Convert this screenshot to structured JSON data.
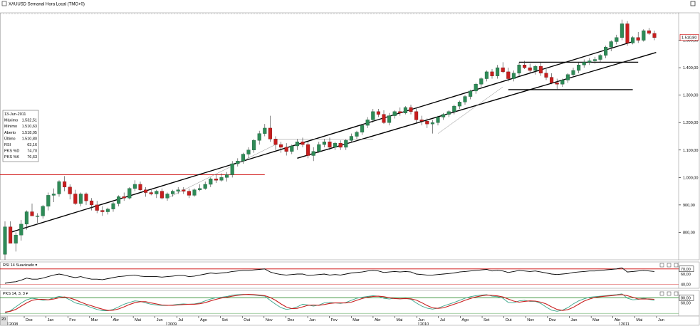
{
  "title": "XAUUSD Semanal Hora Local (TMG+0)",
  "chart_data": {
    "type": "candlestick",
    "instrument": "XAUUSD",
    "timeframe": "Semanal",
    "y_axis": {
      "ticks": [
        800,
        900,
        1000,
        1100,
        1200,
        1300,
        1400,
        1500
      ],
      "tick_labels": [
        "800,00",
        "900,00",
        "1.000,00",
        "1.100,00",
        "1.200,00",
        "1.300,00",
        "1.400,00",
        "1.500,00"
      ],
      "range": [
        700,
        1600
      ]
    },
    "last_price_label": "1.510,80",
    "last_price": 1510.8,
    "x_axis": {
      "month_labels": [
        "Dez",
        "Jan",
        "Fev",
        "Mar",
        "Abr",
        "Mai",
        "Jun",
        "Jul",
        "Ago",
        "Set",
        "Out",
        "Nov",
        "Dez",
        "Jan",
        "Fev",
        "Mar",
        "Abr",
        "Mai",
        "Jun",
        "Jul",
        "Ago",
        "Set",
        "Out",
        "Nov",
        "Dez",
        "Jan",
        "Mar",
        "Abr",
        "Mai",
        "Jun"
      ],
      "year_labels": [
        "2008",
        "2009",
        "2010",
        "2011"
      ],
      "left_cut_label": "20"
    },
    "ohlc": [
      [
        720,
        840,
        700,
        820
      ],
      [
        820,
        840,
        760,
        760
      ],
      [
        760,
        800,
        730,
        790
      ],
      [
        790,
        845,
        770,
        830
      ],
      [
        830,
        880,
        810,
        875
      ],
      [
        875,
        905,
        860,
        860
      ],
      [
        860,
        870,
        835,
        860
      ],
      [
        860,
        900,
        850,
        895
      ],
      [
        895,
        945,
        880,
        935
      ],
      [
        935,
        960,
        910,
        940
      ],
      [
        940,
        990,
        930,
        985
      ],
      [
        985,
        1005,
        950,
        965
      ],
      [
        965,
        975,
        920,
        940
      ],
      [
        940,
        955,
        900,
        905
      ],
      [
        905,
        945,
        895,
        940
      ],
      [
        940,
        945,
        900,
        915
      ],
      [
        915,
        925,
        880,
        900
      ],
      [
        900,
        915,
        870,
        880
      ],
      [
        880,
        895,
        860,
        875
      ],
      [
        875,
        890,
        865,
        885
      ],
      [
        885,
        910,
        875,
        905
      ],
      [
        905,
        935,
        895,
        930
      ],
      [
        930,
        945,
        915,
        925
      ],
      [
        925,
        965,
        920,
        960
      ],
      [
        960,
        990,
        950,
        975
      ],
      [
        975,
        985,
        950,
        955
      ],
      [
        955,
        965,
        930,
        945
      ],
      [
        945,
        955,
        935,
        940
      ],
      [
        940,
        955,
        925,
        950
      ],
      [
        950,
        960,
        920,
        925
      ],
      [
        925,
        945,
        915,
        940
      ],
      [
        940,
        955,
        930,
        950
      ],
      [
        950,
        965,
        940,
        955
      ],
      [
        955,
        965,
        940,
        950
      ],
      [
        950,
        960,
        925,
        935
      ],
      [
        935,
        960,
        930,
        955
      ],
      [
        955,
        975,
        950,
        960
      ],
      [
        960,
        985,
        955,
        975
      ],
      [
        975,
        1000,
        965,
        995
      ],
      [
        995,
        1010,
        980,
        990
      ],
      [
        990,
        1015,
        985,
        1000
      ],
      [
        1000,
        1020,
        985,
        1010
      ],
      [
        1010,
        1060,
        1000,
        1050
      ],
      [
        1050,
        1070,
        1040,
        1060
      ],
      [
        1060,
        1090,
        1050,
        1085
      ],
      [
        1085,
        1110,
        1070,
        1100
      ],
      [
        1100,
        1140,
        1090,
        1135
      ],
      [
        1135,
        1170,
        1120,
        1160
      ],
      [
        1160,
        1195,
        1150,
        1180
      ],
      [
        1180,
        1225,
        1130,
        1140
      ],
      [
        1140,
        1150,
        1100,
        1120
      ],
      [
        1120,
        1130,
        1090,
        1110
      ],
      [
        1110,
        1125,
        1080,
        1095
      ],
      [
        1095,
        1120,
        1085,
        1115
      ],
      [
        1115,
        1140,
        1100,
        1130
      ],
      [
        1130,
        1145,
        1110,
        1120
      ],
      [
        1120,
        1130,
        1070,
        1080
      ],
      [
        1080,
        1110,
        1060,
        1095
      ],
      [
        1095,
        1130,
        1090,
        1120
      ],
      [
        1120,
        1140,
        1110,
        1130
      ],
      [
        1130,
        1145,
        1100,
        1110
      ],
      [
        1110,
        1130,
        1100,
        1125
      ],
      [
        1125,
        1135,
        1100,
        1110
      ],
      [
        1110,
        1140,
        1100,
        1135
      ],
      [
        1135,
        1160,
        1130,
        1150
      ],
      [
        1150,
        1170,
        1140,
        1165
      ],
      [
        1165,
        1195,
        1155,
        1190
      ],
      [
        1190,
        1220,
        1180,
        1210
      ],
      [
        1210,
        1250,
        1200,
        1240
      ],
      [
        1240,
        1250,
        1220,
        1230
      ],
      [
        1230,
        1245,
        1195,
        1200
      ],
      [
        1200,
        1235,
        1190,
        1225
      ],
      [
        1225,
        1245,
        1215,
        1240
      ],
      [
        1240,
        1255,
        1225,
        1235
      ],
      [
        1235,
        1260,
        1230,
        1255
      ],
      [
        1255,
        1265,
        1230,
        1240
      ],
      [
        1240,
        1255,
        1200,
        1210
      ],
      [
        1210,
        1225,
        1190,
        1205
      ],
      [
        1205,
        1215,
        1180,
        1195
      ],
      [
        1195,
        1210,
        1160,
        1200
      ],
      [
        1200,
        1225,
        1190,
        1220
      ],
      [
        1220,
        1235,
        1210,
        1230
      ],
      [
        1230,
        1245,
        1220,
        1240
      ],
      [
        1240,
        1265,
        1230,
        1260
      ],
      [
        1260,
        1280,
        1250,
        1275
      ],
      [
        1275,
        1300,
        1265,
        1295
      ],
      [
        1295,
        1320,
        1285,
        1315
      ],
      [
        1315,
        1345,
        1305,
        1340
      ],
      [
        1340,
        1365,
        1330,
        1360
      ],
      [
        1360,
        1390,
        1350,
        1385
      ],
      [
        1385,
        1395,
        1360,
        1370
      ],
      [
        1370,
        1410,
        1360,
        1400
      ],
      [
        1400,
        1420,
        1380,
        1385
      ],
      [
        1385,
        1400,
        1350,
        1360
      ],
      [
        1360,
        1390,
        1350,
        1380
      ],
      [
        1380,
        1420,
        1370,
        1410
      ],
      [
        1410,
        1425,
        1395,
        1400
      ],
      [
        1400,
        1415,
        1380,
        1390
      ],
      [
        1390,
        1410,
        1375,
        1405
      ],
      [
        1405,
        1420,
        1370,
        1380
      ],
      [
        1380,
        1395,
        1355,
        1365
      ],
      [
        1365,
        1380,
        1340,
        1345
      ],
      [
        1345,
        1360,
        1320,
        1340
      ],
      [
        1340,
        1360,
        1330,
        1355
      ],
      [
        1355,
        1380,
        1345,
        1375
      ],
      [
        1375,
        1400,
        1365,
        1390
      ],
      [
        1390,
        1420,
        1380,
        1410
      ],
      [
        1410,
        1430,
        1400,
        1420
      ],
      [
        1420,
        1435,
        1410,
        1425
      ],
      [
        1425,
        1440,
        1415,
        1430
      ],
      [
        1430,
        1450,
        1420,
        1445
      ],
      [
        1445,
        1480,
        1435,
        1475
      ],
      [
        1475,
        1500,
        1460,
        1495
      ],
      [
        1495,
        1520,
        1485,
        1510
      ],
      [
        1510,
        1575,
        1500,
        1560
      ],
      [
        1560,
        1570,
        1480,
        1490
      ],
      [
        1490,
        1515,
        1485,
        1510
      ],
      [
        1510,
        1530,
        1490,
        1500
      ],
      [
        1500,
        1540,
        1495,
        1535
      ],
      [
        1535,
        1545,
        1520,
        1525
      ],
      [
        1525,
        1535,
        1500,
        1510
      ]
    ],
    "trendline_1": [
      [
        1,
        800
      ],
      [
        116,
        1495
      ]
    ],
    "trendline_2": [
      [
        54,
        1070
      ],
      [
        119,
        1440
      ]
    ],
    "horizontal_resistance": 1010,
    "box_top": 1420,
    "box_bottom": 1320,
    "indicator_rsi": {
      "label": "RSI 14 Suavizado",
      "value_label": "70,00",
      "ticks": [
        "70,00",
        "60,00",
        "40,00"
      ],
      "values": [
        42,
        44,
        45,
        48,
        52,
        50,
        50,
        52,
        55,
        58,
        60,
        58,
        55,
        53,
        55,
        52,
        50,
        50,
        49,
        51,
        53,
        55,
        56,
        57,
        58,
        56,
        55,
        55,
        55,
        54,
        55,
        56,
        57,
        57,
        55,
        56,
        58,
        60,
        62,
        61,
        62,
        63,
        65,
        66,
        67,
        67,
        68,
        69,
        70,
        64,
        61,
        59,
        58,
        59,
        60,
        60,
        57,
        58,
        59,
        60,
        58,
        59,
        58,
        60,
        62,
        63,
        64,
        66,
        67,
        66,
        63,
        64,
        65,
        64,
        65,
        64,
        60,
        59,
        58,
        58,
        59,
        60,
        61,
        62,
        64,
        65,
        66,
        67,
        68,
        69,
        66,
        67,
        66,
        63,
        65,
        67,
        66,
        65,
        66,
        64,
        62,
        60,
        59,
        60,
        61,
        63,
        64,
        65,
        66,
        66,
        67,
        68,
        69,
        70,
        72,
        64,
        65,
        66,
        67,
        66,
        65
      ]
    },
    "indicator_pks": {
      "label": "PKS 14, 3, 3",
      "value_label": "80,00",
      "ticks": [
        "80,00",
        "60,00"
      ],
      "k_values": [
        20,
        30,
        45,
        60,
        72,
        78,
        75,
        70,
        72,
        80,
        85,
        82,
        72,
        60,
        55,
        50,
        42,
        35,
        30,
        30,
        35,
        45,
        55,
        62,
        68,
        66,
        60,
        55,
        52,
        50,
        50,
        52,
        55,
        56,
        55,
        56,
        60,
        68,
        75,
        80,
        82,
        85,
        90,
        92,
        93,
        92,
        90,
        88,
        86,
        70,
        55,
        42,
        35,
        38,
        45,
        55,
        52,
        48,
        52,
        60,
        62,
        60,
        58,
        62,
        70,
        78,
        82,
        85,
        88,
        86,
        78,
        75,
        78,
        76,
        78,
        74,
        60,
        48,
        40,
        36,
        40,
        48,
        55,
        62,
        70,
        78,
        84,
        88,
        90,
        92,
        86,
        84,
        78,
        62,
        60,
        68,
        70,
        66,
        66,
        58,
        44,
        32,
        28,
        32,
        42,
        56,
        68,
        76,
        82,
        84,
        86,
        88,
        90,
        92,
        95,
        78,
        72,
        74,
        78,
        74,
        70
      ],
      "d_values": [
        25,
        28,
        35,
        48,
        60,
        70,
        74,
        74,
        72,
        75,
        80,
        83,
        79,
        72,
        63,
        55,
        49,
        42,
        36,
        31,
        32,
        37,
        45,
        54,
        61,
        65,
        65,
        60,
        56,
        52,
        51,
        51,
        52,
        54,
        55,
        55,
        57,
        61,
        68,
        74,
        79,
        82,
        86,
        89,
        92,
        93,
        92,
        90,
        88,
        81,
        70,
        56,
        44,
        38,
        39,
        45,
        51,
        52,
        51,
        54,
        58,
        60,
        60,
        60,
        63,
        70,
        77,
        82,
        85,
        86,
        84,
        80,
        77,
        76,
        77,
        76,
        71,
        61,
        50,
        41,
        39,
        41,
        48,
        55,
        62,
        70,
        77,
        83,
        87,
        90,
        89,
        87,
        83,
        75,
        67,
        63,
        66,
        68,
        67,
        63,
        56,
        45,
        35,
        31,
        34,
        43,
        55,
        67,
        75,
        81,
        84,
        86,
        88,
        90,
        92,
        88,
        82,
        75,
        75,
        75,
        74
      ]
    }
  }
}
